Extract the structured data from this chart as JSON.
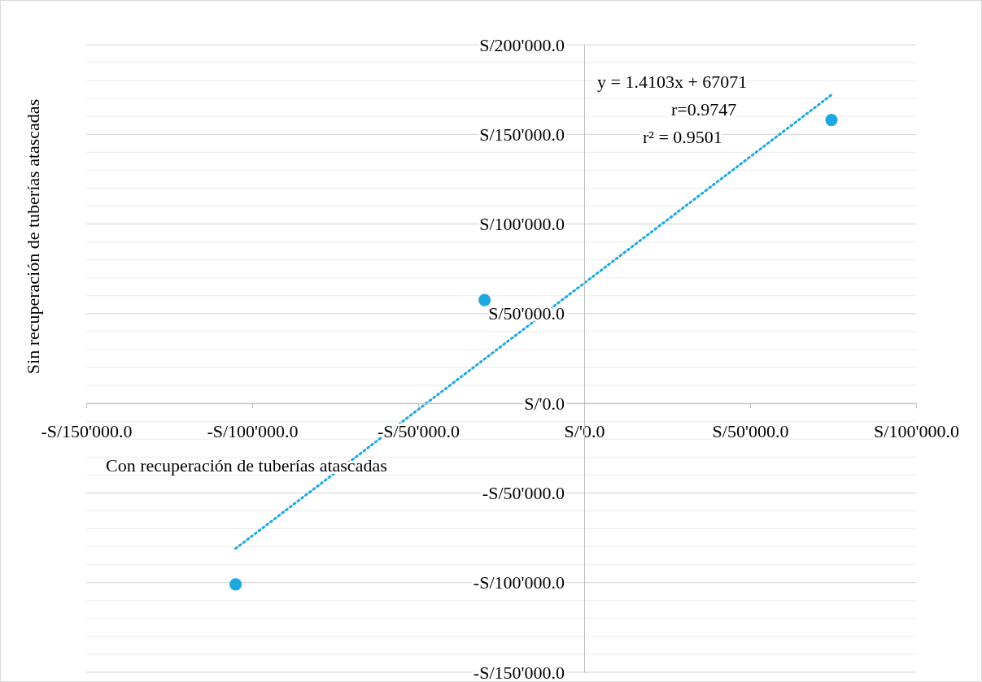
{
  "chart_data": {
    "type": "scatter",
    "xlabel": "Con recuperación de tuberías atascadas",
    "ylabel": "Sin recuperación de tuberías atascadas",
    "annotations": [
      "y = 1.4103x + 67071",
      "r=0.9747",
      "r² = 0.9501"
    ],
    "xlim": [
      -150000,
      100000
    ],
    "xticks": [
      {
        "value": -150000,
        "label": "-S/150'000.0"
      },
      {
        "value": -100000,
        "label": "-S/100'000.0"
      },
      {
        "value": -50000,
        "label": "-S/50'000.0"
      },
      {
        "value": 0,
        "label": "S/'0.0"
      },
      {
        "value": 50000,
        "label": "S/50'000.0"
      },
      {
        "value": 100000,
        "label": "S/100'000.0"
      }
    ],
    "ylim": [
      -150000,
      200000
    ],
    "yticks": [
      {
        "value": -150000,
        "label": "-S/150'000.0"
      },
      {
        "value": -140000,
        "label": null
      },
      {
        "value": -130000,
        "label": null
      },
      {
        "value": -120000,
        "label": null
      },
      {
        "value": -110000,
        "label": null
      },
      {
        "value": -100000,
        "label": "-S/100'000.0"
      },
      {
        "value": -90000,
        "label": null
      },
      {
        "value": -80000,
        "label": null
      },
      {
        "value": -70000,
        "label": null
      },
      {
        "value": -60000,
        "label": null
      },
      {
        "value": -50000,
        "label": "-S/50'000.0"
      },
      {
        "value": -40000,
        "label": null
      },
      {
        "value": -30000,
        "label": null
      },
      {
        "value": -20000,
        "label": null
      },
      {
        "value": -10000,
        "label": null
      },
      {
        "value": 0,
        "label": "S/'0.0"
      },
      {
        "value": 10000,
        "label": null
      },
      {
        "value": 20000,
        "label": null
      },
      {
        "value": 30000,
        "label": null
      },
      {
        "value": 40000,
        "label": null
      },
      {
        "value": 50000,
        "label": "S/50'000.0"
      },
      {
        "value": 60000,
        "label": null
      },
      {
        "value": 70000,
        "label": null
      },
      {
        "value": 80000,
        "label": null
      },
      {
        "value": 90000,
        "label": null
      },
      {
        "value": 100000,
        "label": "S/100'000.0"
      },
      {
        "value": 110000,
        "label": null
      },
      {
        "value": 120000,
        "label": null
      },
      {
        "value": 130000,
        "label": null
      },
      {
        "value": 140000,
        "label": null
      },
      {
        "value": 150000,
        "label": "S/150'000.0"
      },
      {
        "value": 160000,
        "label": null
      },
      {
        "value": 170000,
        "label": null
      },
      {
        "value": 180000,
        "label": null
      },
      {
        "value": 190000,
        "label": null
      },
      {
        "value": 200000,
        "label": "S/200'000.0"
      }
    ],
    "grid": "y",
    "series": [
      {
        "color": "#1fa8e0",
        "marker": "circle",
        "x": [
          -105000,
          -30000,
          74500
        ],
        "values": [
          -101000,
          57600,
          158000
        ]
      },
      {
        "type": "line",
        "color": "#1fa8e0",
        "line_style": "dotted",
        "x": [
          -105000,
          74500
        ],
        "values": [
          -81000,
          172000
        ]
      }
    ]
  }
}
